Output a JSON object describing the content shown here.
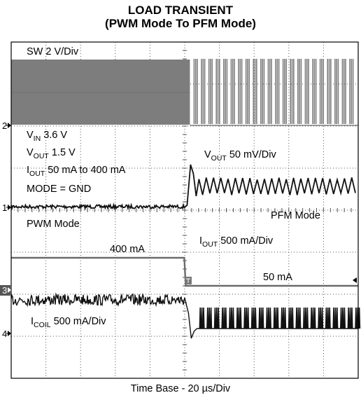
{
  "title_line1": "LOAD TRANSIENT",
  "title_line2": "(PWM Mode To PFM Mode)",
  "labels": {
    "sw": "SW 2 V/Div",
    "vin_main": "V",
    "vin_sub": "IN",
    "vin_value": " 3.6 V",
    "vout_main": "V",
    "vout_sub": "OUT",
    "vout_value": " 1.5 V",
    "iout_main": "I",
    "iout_sub": "OUT",
    "iout_value": "  50 mA to 400 mA",
    "mode": "MODE = GND",
    "vout_scale_main": "V",
    "vout_scale_sub": "OUT",
    "vout_scale_value": " 50 mV/Div",
    "pwm_mode": "PWM Mode",
    "pfm_mode": "PFM Mode",
    "iout_scale_main": "I",
    "iout_scale_sub": "OUT",
    "iout_scale_value": " 500 mA/Div",
    "current_high": "400 mA",
    "current_low": "50 mA",
    "icoil_main": "I",
    "icoil_sub": "COIL",
    "icoil_value": " 500 mA/Div",
    "timebase": "Time Base - 20 µs/Div"
  },
  "chart_data": {
    "type": "line",
    "title": "LOAD TRANSIENT (PWM Mode To PFM Mode)",
    "xlabel": "Time Base - 20 µs/Div",
    "x_divisions": 10,
    "y_divisions": 8,
    "transition_division": 5.15,
    "grid": true,
    "channels": [
      {
        "marker": "2",
        "name": "SW",
        "scale": "2 V/Div"
      },
      {
        "marker": "1",
        "name": "VOUT",
        "scale": "50 mV/Div"
      },
      {
        "marker": "3",
        "name": "IOUT",
        "scale": "500 mA/Div",
        "before": "400 mA",
        "after": "50 mA"
      },
      {
        "marker": "4",
        "name": "ICOIL",
        "scale": "500 mA/Div"
      }
    ],
    "colors": {
      "trace_gray": "#7d7d7d",
      "trace_black": "#111111",
      "grid": "#555555",
      "marker_bg": "#555555"
    }
  }
}
